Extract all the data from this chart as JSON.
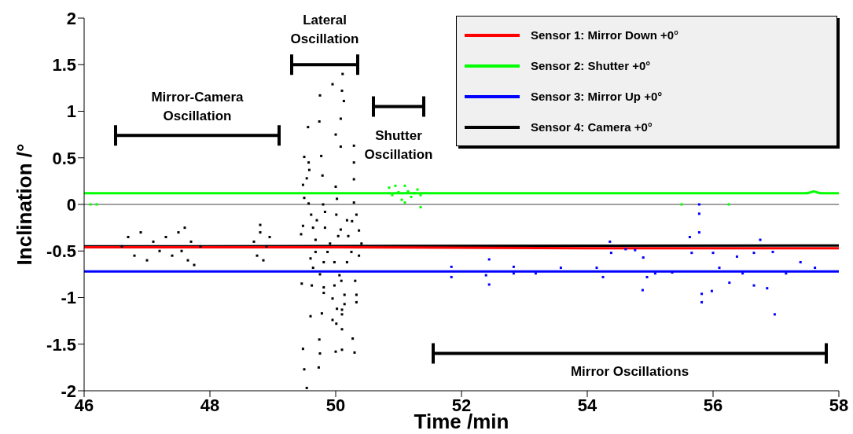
{
  "chart_data": {
    "type": "scatter",
    "xlabel": "Time /min",
    "ylabel": "Inclination /°",
    "xlim": [
      46,
      58
    ],
    "xticks": [
      46,
      48,
      50,
      52,
      54,
      56,
      58
    ],
    "ylim": [
      -2,
      2
    ],
    "yticks": [
      -2,
      -1.5,
      -1,
      -0.5,
      0,
      0.5,
      1,
      1.5,
      2
    ],
    "grid": false,
    "legend": "top right",
    "marker": "square",
    "ref_lines": [
      {
        "axis": "y",
        "value": 0,
        "color": "#808080"
      }
    ],
    "annotations": [
      "Mirror-Camera Oscillation",
      "Lateral Oscillation",
      "Shutter Oscillation",
      "Mirror Oscillations"
    ],
    "series": [
      {
        "name": "Sensor 1: Mirror Down +0°",
        "type": "line",
        "marker": "none",
        "color": "#ff0000",
        "x": [
          46,
          50,
          54,
          58
        ],
        "values": [
          -0.46,
          -0.46,
          -0.47,
          -0.47
        ]
      },
      {
        "name": "Sensor 2: Shutter +0°",
        "type": "line",
        "marker": "none",
        "color": "#00ff00",
        "x": [
          46,
          57.5,
          57.6,
          57.7,
          58
        ],
        "values": [
          0.12,
          0.12,
          0.14,
          0.12,
          0.12
        ]
      },
      {
        "name": "Sensor 3: Mirror Up +0°",
        "type": "line",
        "marker": "none",
        "color": "#0000ff",
        "x": [
          46,
          58
        ],
        "values": [
          -0.72,
          -0.72
        ]
      },
      {
        "name": "Sensor 4: Camera +0°",
        "type": "line",
        "marker": "none",
        "color": "#000000",
        "x": [
          46,
          58
        ],
        "values": [
          -0.45,
          -0.44
        ]
      },
      {
        "color": "#000000",
        "x": [
          46.6,
          46.7,
          46.8,
          46.9,
          47.0,
          47.1,
          47.2,
          47.3,
          47.4,
          47.5,
          47.55,
          47.6,
          47.65,
          47.7,
          47.75,
          47.85,
          48.7,
          48.75,
          48.8,
          48.85,
          48.9,
          48.95,
          48.8,
          50.11,
          49.95,
          50.1,
          49.75,
          50.13,
          49.74,
          50.08,
          49.56,
          50.0,
          50.08,
          50.29,
          49.5,
          49.77,
          49.57,
          50.29,
          49.58,
          49.79,
          49.54,
          50.29,
          49.48,
          50.0,
          49.5,
          50.02,
          49.57,
          49.8,
          50.29,
          49.61,
          49.83,
          50.01,
          50.33,
          49.7,
          50.18,
          50.26,
          49.48,
          49.64,
          49.83,
          50.08,
          50.37,
          49.45,
          50.04,
          49.68,
          50.2,
          49.91,
          50.41,
          49.68,
          49.87,
          50.25,
          49.6,
          49.81,
          49.98,
          50.18,
          50.37,
          49.64,
          49.75,
          50.06,
          50.31,
          49.46,
          49.62,
          49.81,
          49.98,
          50.09,
          49.81,
          50.14,
          50.33,
          49.95,
          50.33,
          50.14,
          50.02,
          50.1,
          49.78,
          49.6,
          50.1,
          49.95,
          50.01,
          50.1,
          50.27,
          49.74,
          49.48,
          50.0,
          50.1,
          49.75,
          50.3,
          49.5,
          49.73,
          49.54
        ],
        "values": [
          -0.45,
          -0.35,
          -0.55,
          -0.3,
          -0.6,
          -0.4,
          -0.5,
          -0.35,
          -0.55,
          -0.3,
          -0.5,
          -0.25,
          -0.6,
          -0.4,
          -0.65,
          -0.45,
          -0.4,
          -0.55,
          -0.3,
          -0.6,
          -0.45,
          -0.35,
          -0.22,
          1.4,
          1.29,
          1.22,
          1.17,
          1.11,
          0.89,
          0.92,
          0.83,
          0.75,
          0.62,
          0.63,
          0.51,
          0.52,
          0.45,
          0.45,
          0.37,
          0.31,
          0.28,
          0.27,
          0.21,
          0.19,
          0.07,
          0.06,
          0.01,
          0.0,
          0.02,
          -0.11,
          -0.08,
          -0.11,
          -0.11,
          -0.17,
          -0.17,
          -0.18,
          -0.23,
          -0.25,
          -0.25,
          -0.27,
          -0.28,
          -0.32,
          -0.34,
          -0.38,
          -0.34,
          -0.42,
          -0.42,
          -0.51,
          -0.51,
          -0.51,
          -0.58,
          -0.62,
          -0.62,
          -0.62,
          -0.55,
          -0.68,
          -0.75,
          -0.76,
          -0.82,
          -0.85,
          -0.87,
          -0.89,
          -0.87,
          -0.82,
          -0.95,
          -0.97,
          -0.97,
          -1.01,
          -1.05,
          -1.07,
          -1.12,
          -1.13,
          -1.17,
          -1.2,
          -1.18,
          -1.24,
          -1.28,
          -1.34,
          -1.44,
          -1.45,
          -1.55,
          -1.58,
          -1.56,
          -1.6,
          -1.59,
          -1.77,
          -1.75,
          -1.97
        ]
      },
      {
        "color": "#00ff00",
        "x": [
          50.85,
          50.9,
          50.95,
          51.0,
          51.05,
          51.1,
          51.15,
          51.2,
          51.25,
          51.3,
          51.35,
          51.1,
          51.35,
          46.1,
          46.2,
          55.5,
          56.25
        ],
        "values": [
          0.18,
          0.1,
          0.2,
          0.13,
          0.05,
          0.2,
          0.14,
          0.08,
          0.12,
          0.16,
          0.1,
          0.02,
          -0.03,
          0,
          0,
          0,
          0
        ]
      },
      {
        "color": "#0000ff",
        "x": [
          51.84,
          51.84,
          52.44,
          52.44,
          52.39,
          52.83,
          52.83,
          53.58,
          54.36,
          54.38,
          54.25,
          54.61,
          54.76,
          54.88,
          54.95,
          54.89,
          55.78,
          55.78,
          55.63,
          55.78,
          55.66,
          55.82,
          55.82,
          55.98,
          56.0,
          56.26,
          56.38,
          56.65,
          56.65,
          56.86,
          56.95,
          56.98,
          56.75,
          57.39,
          57.62,
          57.16,
          56.47,
          55.35,
          55.08,
          54.15,
          56.1,
          53.18
        ],
        "values": [
          -0.67,
          -0.78,
          -0.59,
          -0.86,
          -0.76,
          -0.67,
          -0.74,
          -0.68,
          -0.4,
          -0.52,
          -0.78,
          -0.48,
          -0.49,
          -0.92,
          -0.78,
          -0.57,
          0.0,
          -0.1,
          -0.35,
          -0.3,
          -0.52,
          -0.96,
          -1.05,
          -0.93,
          -0.52,
          -0.84,
          -0.56,
          -0.52,
          -0.87,
          -0.9,
          -0.51,
          -1.18,
          -0.38,
          -0.62,
          -0.68,
          -0.74,
          -0.74,
          -0.73,
          -0.74,
          -0.68,
          -0.68,
          -0.74
        ]
      }
    ]
  }
}
